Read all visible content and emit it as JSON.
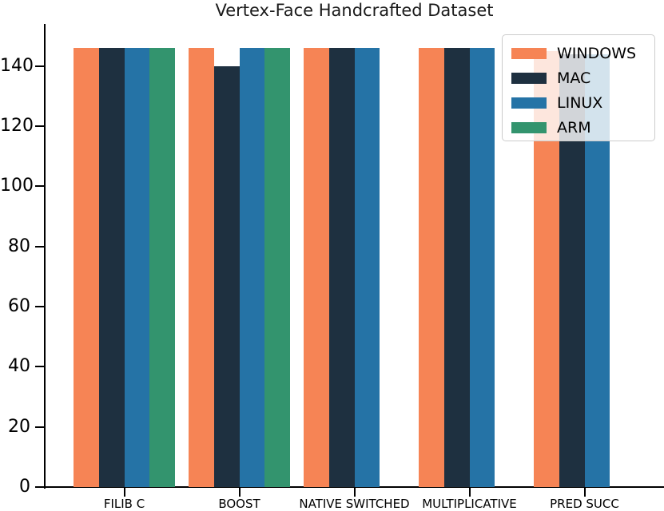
{
  "chart_data": {
    "type": "bar",
    "title": "Vertex-Face Handcrafted Dataset",
    "xlabel": "",
    "ylabel": "",
    "categories": [
      "FILIB C",
      "BOOST",
      "NATIVE SWITCHED",
      "MULTIPLICATIVE",
      "PRED SUCC"
    ],
    "series": [
      {
        "name": "WINDOWS",
        "color": "#F68455",
        "values": [
          146,
          146,
          146,
          146,
          145
        ]
      },
      {
        "name": "MAC",
        "color": "#1E3040",
        "values": [
          146,
          140,
          146,
          146,
          144
        ]
      },
      {
        "name": "LINUX",
        "color": "#2573A6",
        "values": [
          146,
          146,
          146,
          146,
          144
        ]
      },
      {
        "name": "ARM",
        "color": "#33946E",
        "values": [
          146,
          146,
          0,
          0,
          0
        ]
      }
    ],
    "yticks": [
      0,
      20,
      40,
      60,
      80,
      100,
      120,
      140
    ],
    "ylim": [
      0,
      154
    ],
    "grid": false,
    "legend_position": "upper right",
    "axis_color": "#000000"
  }
}
